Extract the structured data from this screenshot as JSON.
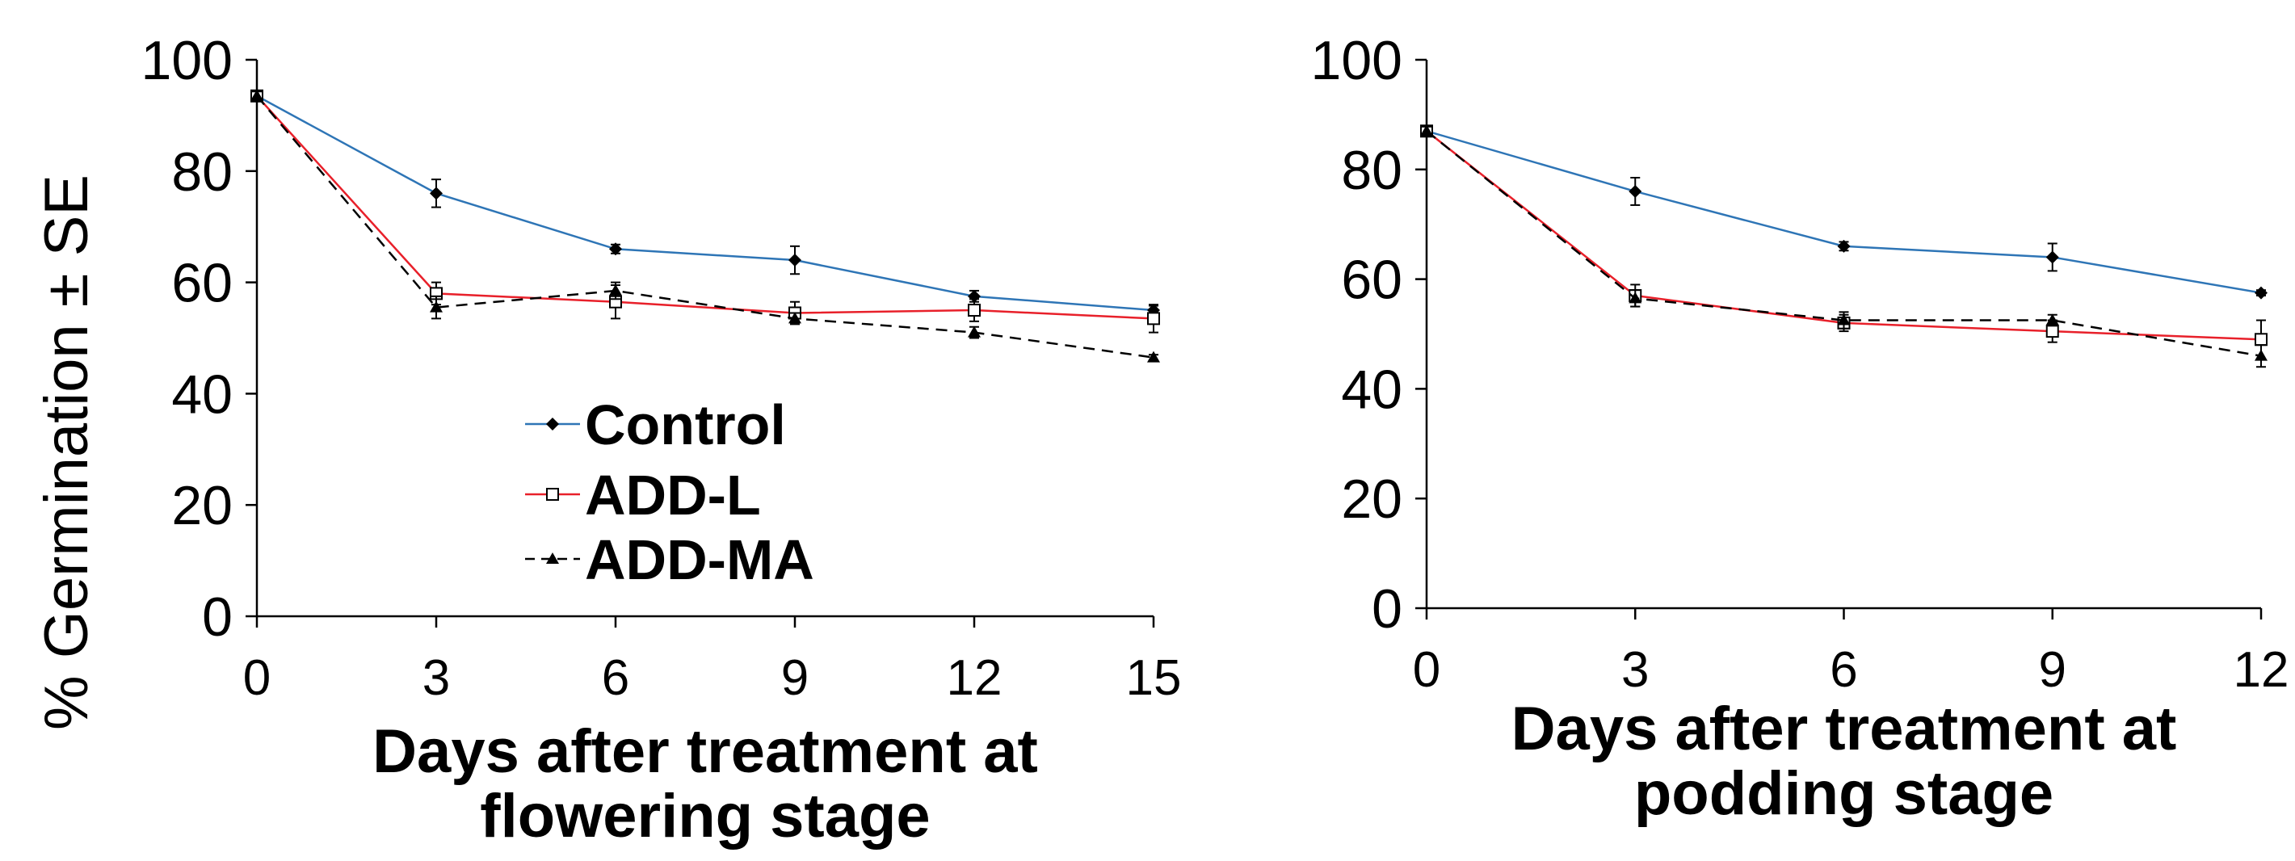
{
  "y_axis_label": "% Germination ± SE",
  "colors": {
    "control": "#2E75B6",
    "add_l": "#E8202A",
    "add_ma": "#000000",
    "axis": "#000000"
  },
  "legend": {
    "placement": "inside-bottom-left of left chart",
    "items": [
      {
        "label": "Control",
        "marker": "diamond",
        "color": "#2E75B6",
        "dash": "solid"
      },
      {
        "label": "ADD-L",
        "marker": "square-open",
        "color": "#E8202A",
        "dash": "solid"
      },
      {
        "label": "ADD-MA",
        "marker": "triangle",
        "color": "#000000",
        "dash": "dashed"
      }
    ]
  },
  "chart_data": [
    {
      "type": "line",
      "xlabel": "Days after treatment at flowering stage",
      "xlabel_lines": [
        "Days after treatment at",
        "flowering stage"
      ],
      "ylabel": "% Germination ± SE",
      "x": [
        0,
        3,
        6,
        9,
        12,
        15
      ],
      "xlim": [
        0,
        15
      ],
      "ylim": [
        0,
        100
      ],
      "xticks": [
        0,
        3,
        6,
        9,
        12,
        15
      ],
      "yticks": [
        0,
        20,
        40,
        60,
        80,
        100
      ],
      "grid": false,
      "series": [
        {
          "name": "Control",
          "values": [
            93.5,
            76.0,
            66.0,
            64.0,
            57.5,
            55.0
          ],
          "errors": [
            0.8,
            2.5,
            0.8,
            2.5,
            1.0,
            0.8
          ]
        },
        {
          "name": "ADD-L",
          "values": [
            93.5,
            58.0,
            56.5,
            54.5,
            55.0,
            53.5
          ],
          "errors": [
            0.8,
            2.0,
            3.0,
            2.0,
            2.0,
            2.5
          ]
        },
        {
          "name": "ADD-MA",
          "values": [
            93.5,
            55.5,
            58.5,
            53.5,
            51.0,
            46.5
          ],
          "errors": [
            0.8,
            2.0,
            1.5,
            1.0,
            1.0,
            0.5
          ]
        }
      ]
    },
    {
      "type": "line",
      "xlabel": "Days after treatment at podding stage",
      "xlabel_lines": [
        "Days after treatment at",
        "podding stage"
      ],
      "ylabel": "",
      "x": [
        0,
        3,
        6,
        9,
        12
      ],
      "xlim": [
        0,
        12
      ],
      "ylim": [
        0,
        100
      ],
      "xticks": [
        0,
        3,
        6,
        9,
        12
      ],
      "yticks": [
        0,
        20,
        40,
        60,
        80,
        100
      ],
      "grid": false,
      "series": [
        {
          "name": "Control",
          "values": [
            87.0,
            76.0,
            66.0,
            64.0,
            57.5
          ],
          "errors": [
            0.8,
            2.5,
            0.8,
            2.5,
            0.5
          ]
        },
        {
          "name": "ADD-L",
          "values": [
            87.0,
            57.0,
            52.0,
            50.5,
            49.0
          ],
          "errors": [
            0.8,
            2.0,
            1.5,
            2.0,
            3.5
          ]
        },
        {
          "name": "ADD-MA",
          "values": [
            87.0,
            56.5,
            52.5,
            52.5,
            46.0
          ],
          "errors": [
            0.8,
            1.5,
            1.5,
            1.0,
            2.0
          ]
        }
      ]
    }
  ]
}
